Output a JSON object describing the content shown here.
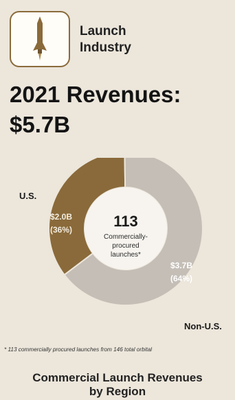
{
  "header": {
    "icon": "rocket-icon",
    "category_line1": "Launch",
    "category_line2": "Industry",
    "headline_line1": "2021 Revenues:",
    "headline_line2": "$5.7B"
  },
  "colors": {
    "us": "#8a6a3a",
    "non_us": "#c4beb6",
    "background": "#ece6db"
  },
  "chart_data": {
    "type": "pie",
    "donut": true,
    "series": [
      {
        "name": "U.S.",
        "value": 2.0,
        "percent": 36,
        "value_label": "$2.0B",
        "percent_label": "(36%)"
      },
      {
        "name": "Non-U.S.",
        "value": 3.7,
        "percent": 64,
        "value_label": "$3.7B",
        "percent_label": "(64%)"
      }
    ],
    "center": {
      "number": "113",
      "line1": "Commercially-",
      "line2": "procured",
      "line3": "launches*"
    }
  },
  "footnote": "* 113 commercially procured launches from 146 total orbital",
  "bottom_title_line1": "Commercial Launch Revenues",
  "bottom_title_line2": "by Region"
}
